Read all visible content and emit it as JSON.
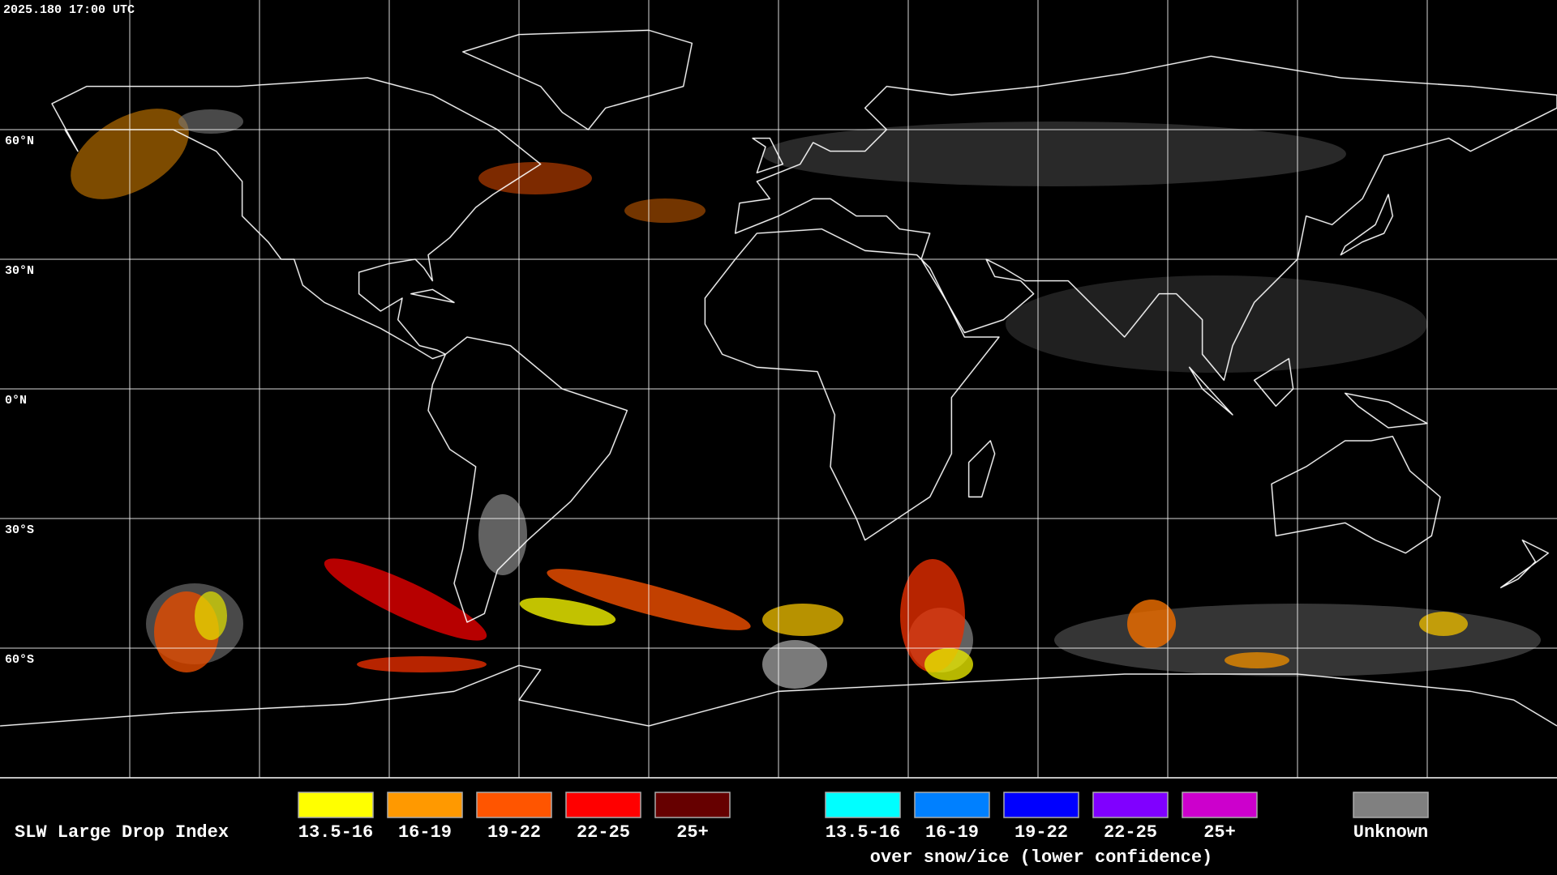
{
  "timestamp": "2025.180 17:00 UTC",
  "latitude_labels": [
    "60°N",
    "30°N",
    "0°N",
    "30°S",
    "60°S"
  ],
  "legend": {
    "title": "SLW Large Drop Index",
    "items": [
      {
        "label": "13.5-16",
        "color": "#ffff00"
      },
      {
        "label": "16-19",
        "color": "#ff9900"
      },
      {
        "label": "19-22",
        "color": "#ff5500"
      },
      {
        "label": "22-25",
        "color": "#ff0000"
      },
      {
        "label": "25+",
        "color": "#660000"
      }
    ],
    "snow_ice_items": [
      {
        "label": "13.5-16",
        "color": "#00ffff"
      },
      {
        "label": "16-19",
        "color": "#0080ff"
      },
      {
        "label": "19-22",
        "color": "#0000ff"
      },
      {
        "label": "22-25",
        "color": "#8000ff"
      },
      {
        "label": "25+",
        "color": "#cc00cc"
      }
    ],
    "snow_ice_caption": "over snow/ice (lower confidence)",
    "unknown": {
      "label": "Unknown",
      "color": "#808080"
    }
  }
}
